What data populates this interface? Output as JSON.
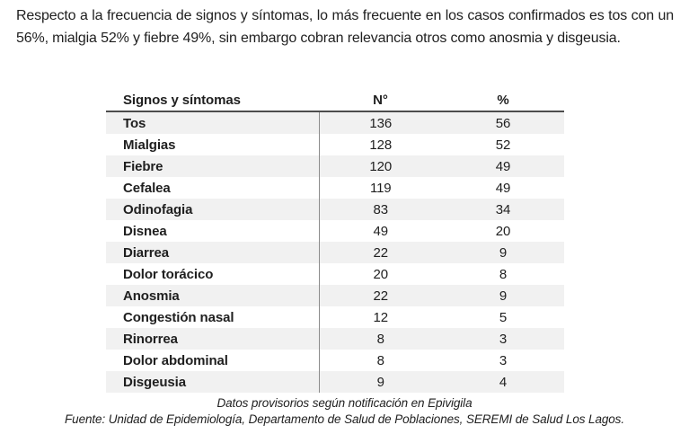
{
  "intro": {
    "text": "Respecto a la frecuencia de signos y síntomas, lo más frecuente en los casos confirmados es tos con un 56%, mialgia 52% y fiebre 49%, sin embargo cobran relevancia otros como anosmia y disgeusia."
  },
  "table": {
    "headers": {
      "symptom": "Signos y síntomas",
      "n": "N°",
      "pct": "%"
    },
    "rows": [
      {
        "name": "Tos",
        "n": "136",
        "pct": "56"
      },
      {
        "name": "Mialgias",
        "n": "128",
        "pct": "52"
      },
      {
        "name": "Fiebre",
        "n": "120",
        "pct": "49"
      },
      {
        "name": "Cefalea",
        "n": "119",
        "pct": "49"
      },
      {
        "name": "Odinofagia",
        "n": "83",
        "pct": "34"
      },
      {
        "name": "Disnea",
        "n": "49",
        "pct": "20"
      },
      {
        "name": "Diarrea",
        "n": "22",
        "pct": "9"
      },
      {
        "name": "Dolor torácico",
        "n": "20",
        "pct": "8"
      },
      {
        "name": "Anosmia",
        "n": "22",
        "pct": "9"
      },
      {
        "name": "Congestión nasal",
        "n": "12",
        "pct": "5"
      },
      {
        "name": "Rinorrea",
        "n": "8",
        "pct": "3"
      },
      {
        "name": "Dolor abdominal",
        "n": "8",
        "pct": "3"
      },
      {
        "name": "Disgeusia",
        "n": "9",
        "pct": "4"
      }
    ]
  },
  "footer": {
    "note": "Datos provisorios según notificación en Epivigila",
    "source": "Fuente: Unidad de Epidemiología, Departamento de Salud de Poblaciones, SEREMI de Salud Los Lagos."
  },
  "colors": {
    "row_stripe": "#f1f1f1",
    "header_border": "#4d4d4d",
    "column_divider": "#8c8c8c",
    "text": "#1f1f1f"
  }
}
